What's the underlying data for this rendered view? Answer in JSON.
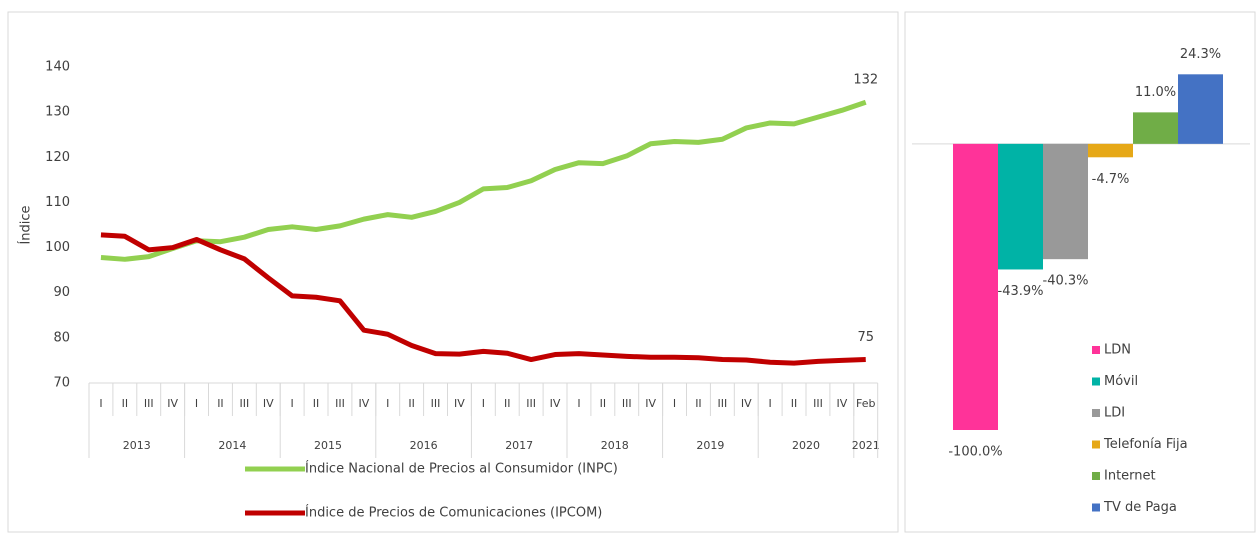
{
  "chart_data": [
    {
      "type": "line",
      "y_label": "Índice",
      "categories": [
        "I",
        "II",
        "III",
        "IV",
        "I",
        "II",
        "III",
        "IV",
        "I",
        "II",
        "III",
        "IV",
        "I",
        "II",
        "III",
        "IV",
        "I",
        "II",
        "III",
        "IV",
        "I",
        "II",
        "III",
        "IV",
        "I",
        "II",
        "III",
        "IV",
        "I",
        "II",
        "III",
        "IV",
        "Feb"
      ],
      "groups": [
        {
          "label": "2013",
          "count": 4
        },
        {
          "label": "2014",
          "count": 4
        },
        {
          "label": "2015",
          "count": 4
        },
        {
          "label": "2016",
          "count": 4
        },
        {
          "label": "2017",
          "count": 4
        },
        {
          "label": "2018",
          "count": 4
        },
        {
          "label": "2019",
          "count": 4
        },
        {
          "label": "2020",
          "count": 4
        },
        {
          "label": "2021",
          "count": 1
        }
      ],
      "ylim": [
        70,
        140
      ],
      "yticks": [
        70,
        80,
        90,
        100,
        110,
        120,
        130,
        140
      ],
      "series": [
        {
          "name": "Índice Nacional de Precios al Consumidor (INPC)",
          "color": "#92d050",
          "end_label": "132",
          "values": [
            97.8,
            97.4,
            98.0,
            99.8,
            101.5,
            101.3,
            102.3,
            104.0,
            104.6,
            104.0,
            104.8,
            106.3,
            107.3,
            106.7,
            108.0,
            110.0,
            113.0,
            113.3,
            114.8,
            117.3,
            118.8,
            118.6,
            120.3,
            123.0,
            123.5,
            123.3,
            124.0,
            126.5,
            127.6,
            127.4,
            128.9,
            130.4,
            132.2
          ]
        },
        {
          "name": "Índice de Precios de Comunicaciones (IPCOM)",
          "color": "#c00000",
          "end_label": "75",
          "values": [
            102.8,
            102.5,
            99.5,
            100.0,
            101.8,
            99.5,
            97.5,
            93.3,
            89.3,
            89.0,
            88.2,
            81.7,
            80.8,
            78.3,
            76.5,
            76.4,
            77.0,
            76.6,
            75.2,
            76.3,
            76.5,
            76.2,
            75.9,
            75.7,
            75.7,
            75.6,
            75.2,
            75.1,
            74.6,
            74.4,
            74.8,
            75.0,
            75.2
          ]
        }
      ]
    },
    {
      "type": "bar",
      "categories": [
        "LDN",
        "Móvil",
        "LDI",
        "Telefonía Fija",
        "Internet",
        "TV de Paga"
      ],
      "values": [
        -100.0,
        -43.9,
        -40.3,
        -4.7,
        11.0,
        24.3
      ],
      "value_labels": [
        "-100.0%",
        "-43.9%",
        "-40.3%",
        "-4.7%",
        "11.0%",
        "24.3%"
      ],
      "colors": [
        "#ff3399",
        "#00b3a6",
        "#999999",
        "#e6a817",
        "#70ad47",
        "#4472c4"
      ],
      "ylim": [
        -100,
        30
      ]
    }
  ]
}
